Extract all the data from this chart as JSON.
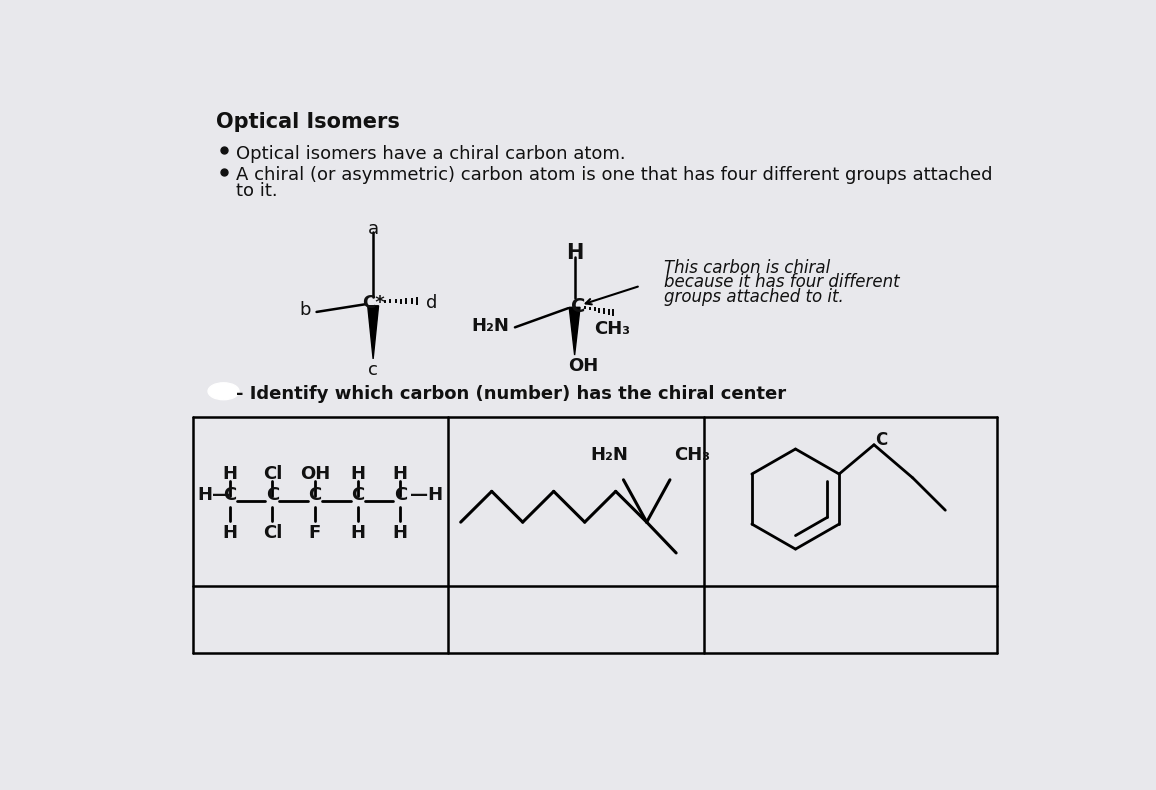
{
  "title": "Optical Isomers",
  "bullet1": "Optical isomers have a chiral carbon atom.",
  "bullet2a": "A chiral (or asymmetric) carbon atom is one that has four different groups attached",
  "bullet2b": "to it.",
  "identify_text": "- Identify which carbon (number) has the chiral center",
  "chiral_note1": "This carbon is chiral",
  "chiral_note2": "because it has four different",
  "chiral_note3": "groups attached to it.",
  "bg_color": "#e8e8ec",
  "text_color": "#111111",
  "table_bg": "#e0e0e4"
}
